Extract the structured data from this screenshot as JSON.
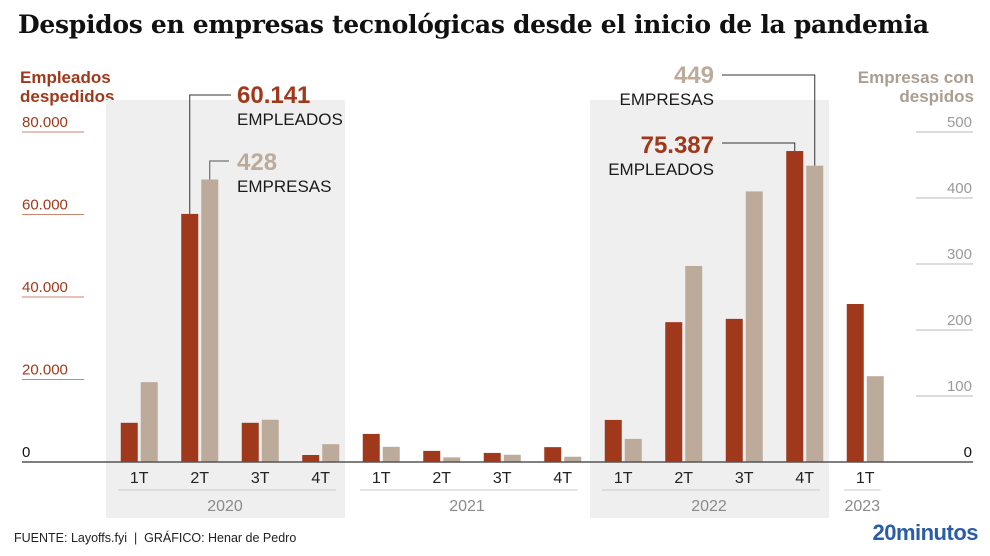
{
  "colors": {
    "employees": "#a0391b",
    "companies": "#bcab9b",
    "companies_text": "#ab9d90",
    "year_band": "#efefef",
    "axis": "#555555",
    "brand": "#2b5ca6"
  },
  "footer": {
    "source": "FUENTE: Layoffs.fyi  |  GRÁFICO: Henar de Pedro",
    "brand": "20minutos"
  },
  "annotations": {
    "a2020_employees_value": "60.141",
    "a2020_employees_label": "EMPLEADOS",
    "a2020_companies_value": "428",
    "a2020_companies_label": "EMPRESAS",
    "a2022_companies_value": "449",
    "a2022_companies_label": "EMPRESAS",
    "a2022_employees_value": "75.387",
    "a2022_employees_label": "EMPLEADOS"
  },
  "chart_data": {
    "type": "bar",
    "title": "Despidos en empresas tecnológicas desde el inicio de la pandemia",
    "xlabel": "",
    "ylabel_left": "Empleados despedidos",
    "ylabel_right": "Empresas con despidos",
    "left_axis": {
      "ylim": [
        0,
        80000
      ],
      "ticks": [
        0,
        20000,
        40000,
        60000,
        80000
      ],
      "tick_labels": [
        "0",
        "20.000",
        "40.000",
        "60.000",
        "80.000"
      ]
    },
    "right_axis": {
      "ylim": [
        0,
        500
      ],
      "ticks": [
        0,
        100,
        200,
        300,
        400,
        500
      ],
      "tick_labels": [
        "0",
        "100",
        "200",
        "300",
        "400",
        "500"
      ]
    },
    "categories": [
      "1T",
      "2T",
      "3T",
      "4T",
      "1T",
      "2T",
      "3T",
      "4T",
      "1T",
      "2T",
      "3T",
      "4T",
      "1T"
    ],
    "years": [
      {
        "label": "2020",
        "count": 4,
        "highlight": true
      },
      {
        "label": "2021",
        "count": 4,
        "highlight": false
      },
      {
        "label": "2022",
        "count": 4,
        "highlight": true
      },
      {
        "label": "2023",
        "count": 1,
        "highlight": false
      }
    ],
    "series": [
      {
        "name": "Empleados despedidos",
        "axis": "left",
        "values": [
          9500,
          60141,
          9500,
          1700,
          6800,
          2700,
          2200,
          3600,
          10200,
          33900,
          34700,
          75387,
          38300
        ]
      },
      {
        "name": "Empresas con despidos",
        "axis": "right",
        "values": [
          121,
          428,
          64,
          27,
          23,
          7,
          11,
          8,
          35,
          297,
          410,
          449,
          130
        ]
      }
    ],
    "grid": false,
    "legend": "none"
  }
}
